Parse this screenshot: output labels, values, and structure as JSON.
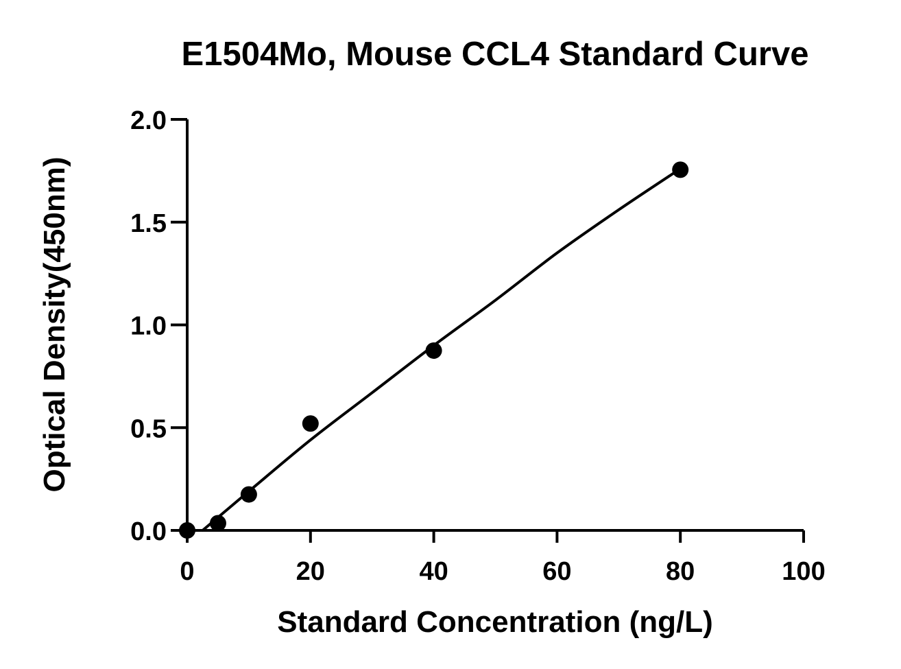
{
  "chart_data": {
    "type": "scatter",
    "title": "E1504Mo, Mouse CCL4 Standard Curve",
    "xlabel": "Standard Concentration (ng/L)",
    "ylabel": "Optical Density(450nm)",
    "xlim": [
      0,
      100
    ],
    "ylim": [
      0,
      2.0
    ],
    "xticks": [
      0,
      20,
      40,
      60,
      80,
      100
    ],
    "xtick_labels": [
      "0",
      "20",
      "40",
      "60",
      "80",
      "100"
    ],
    "yticks": [
      0,
      0.5,
      1.0,
      1.5,
      2.0
    ],
    "ytick_labels": [
      "0.0",
      "0.5",
      "1.0",
      "1.5",
      "2.0"
    ],
    "grid": false,
    "legend": "none",
    "series": [
      {
        "type": "scatter",
        "x": [
          0,
          5,
          10,
          20,
          40,
          80
        ],
        "y": [
          0.0,
          0.035,
          0.175,
          0.52,
          0.875,
          1.755
        ]
      },
      {
        "type": "line",
        "x": [
          2.5,
          10,
          20,
          30,
          40,
          50,
          60,
          70,
          80
        ],
        "y": [
          0.0,
          0.19,
          0.44,
          0.67,
          0.9,
          1.12,
          1.35,
          1.56,
          1.76
        ]
      }
    ],
    "colors": {
      "axis": "#000000",
      "points": "#000000",
      "curve": "#000000"
    }
  }
}
